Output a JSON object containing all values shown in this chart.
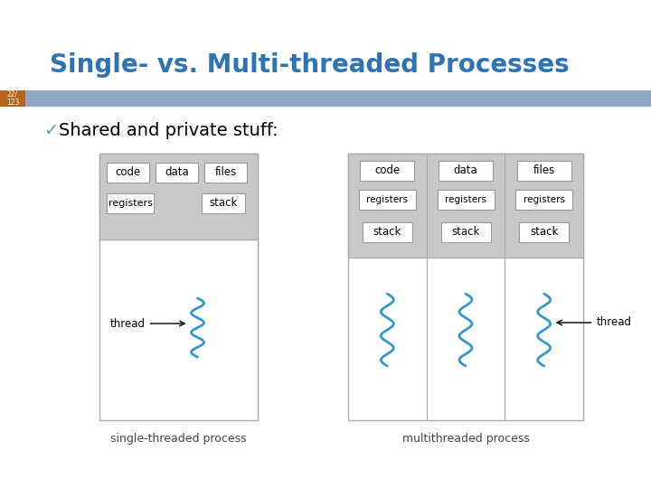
{
  "title": "Single- vs. Multi-threaded Processes",
  "title_color": "#2E74B5",
  "title_fontsize": 20,
  "background_color": "#ffffff",
  "slide_number": "22/\n123",
  "slide_number_color": "#ffffff",
  "slide_number_bg": "#B5651D",
  "banner_color": "#8FA8C8",
  "bullet_text": "Shared and private stuff:",
  "bullet_color": "#000000",
  "bullet_fontsize": 14,
  "check_color": "#5B9BD5",
  "thread_color": "#3399CC",
  "box_edge_color": "#999999",
  "box_face_color": "#ffffff",
  "shared_bg_color": "#C8C8C8",
  "outer_box_color": "#AAAAAA",
  "outer_box_face": "#E8E8E8",
  "lower_box_face": "#ffffff",
  "caption_fontsize": 9,
  "caption_color": "#444444",
  "single_caption": "single-threaded process",
  "multi_caption": "multithreaded process"
}
